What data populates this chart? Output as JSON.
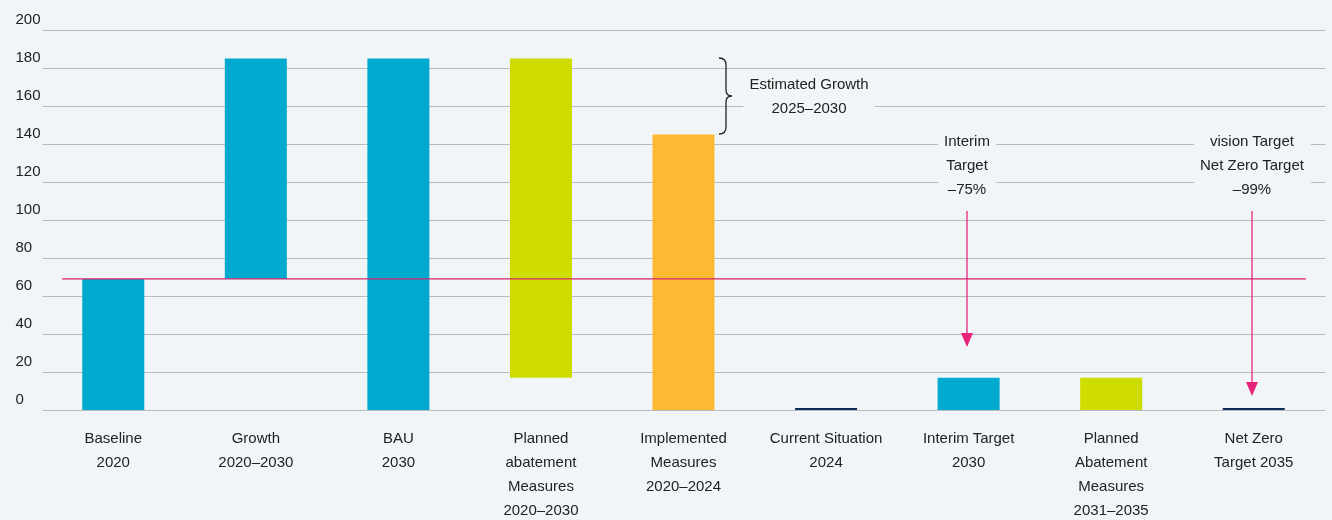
{
  "chart_data": {
    "type": "bar",
    "categories": [
      "Baseline\n2020",
      "Growth\n2020–2030",
      "BAU\n2030",
      "Planned\nabatement\nMeasures\n2020–2030",
      "Implemented\nMeasures\n2020–2024",
      "Current Situation\n2024",
      "Interim Target\n2030",
      "Planned\nAbatement\nMeasures\n2031–2035",
      "Net Zero\nTarget 2035"
    ],
    "values": [
      69,
      116,
      185,
      168,
      145,
      1,
      17,
      17,
      1
    ],
    "base": [
      0,
      69,
      0,
      17,
      0,
      0,
      0,
      0,
      0
    ],
    "colors": [
      "#00a9ce",
      "#00a9ce",
      "#00a9ce",
      "#cfdc00",
      "#fbba31",
      "#0a2d5a",
      "#00a9ce",
      "#cfdc00",
      "#0a2d5a"
    ],
    "ylim": [
      0,
      200
    ],
    "yticks": [
      0,
      20,
      40,
      60,
      80,
      100,
      120,
      140,
      160,
      180,
      200
    ],
    "grid": "y",
    "ref_lines": [
      {
        "axis": "y",
        "value": 69,
        "color": "#d6246e"
      }
    ],
    "annotations": [
      "Estimated Growth\n2025–2030",
      "Interim\nTarget\n–75%",
      "vision Target\nNet Zero Target\n–99%"
    ]
  }
}
